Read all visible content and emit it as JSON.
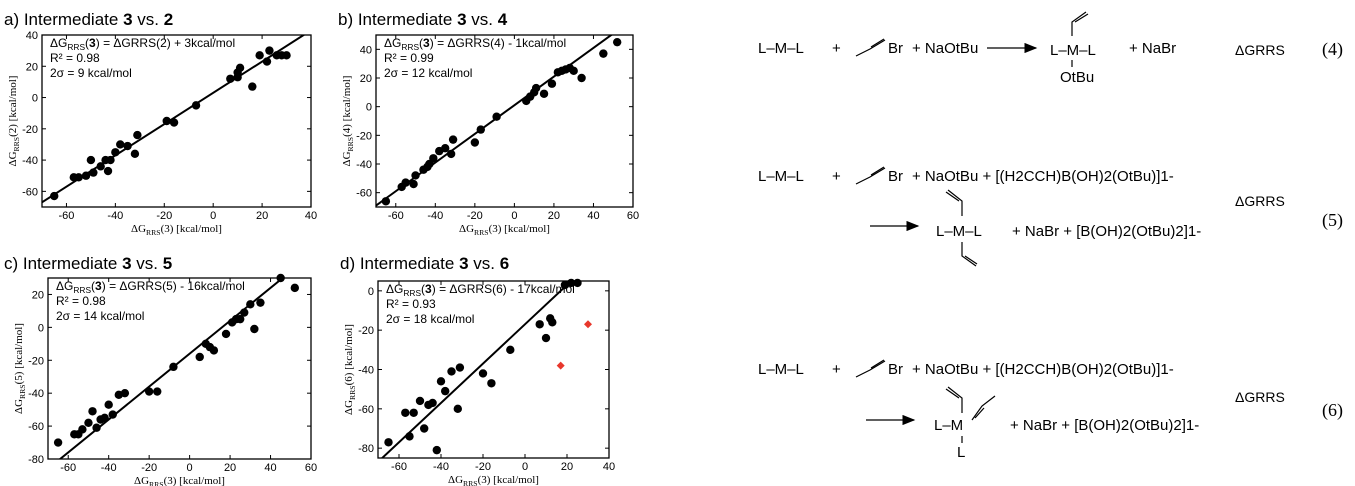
{
  "chart_data": [
    {
      "type": "scatter",
      "panel_label": "a)",
      "title_prefix": "Intermediate ",
      "title_a": "3",
      "title_vs": " vs. ",
      "title_b": "2",
      "xlabel": "ΔG_RRS(3) [kcal/mol]",
      "ylabel": "ΔG_RRS(2) [kcal/mol]",
      "xlim": [
        -70,
        40
      ],
      "ylim": [
        -70,
        40
      ],
      "xticks": [
        -60,
        -40,
        -20,
        0,
        20,
        40
      ],
      "yticks": [
        -60,
        -40,
        -20,
        0,
        20,
        40
      ],
      "annotations": [
        "ΔGRRS(3) = ΔGRRS(2) + 3kcal/mol",
        "R² = 0.98",
        "2σ = 9 kcal/mol"
      ],
      "fit": {
        "slope": 1,
        "intercept": 3
      },
      "points": [
        [
          -65,
          -63
        ],
        [
          -57,
          -51
        ],
        [
          -55,
          -51
        ],
        [
          -52,
          -50
        ],
        [
          -50,
          -40
        ],
        [
          -49,
          -48
        ],
        [
          -46,
          -44
        ],
        [
          -44,
          -40
        ],
        [
          -43,
          -47
        ],
        [
          -42,
          -40
        ],
        [
          -40,
          -35
        ],
        [
          -38,
          -30
        ],
        [
          -35,
          -31
        ],
        [
          -32,
          -36
        ],
        [
          -31,
          -24
        ],
        [
          -19,
          -15
        ],
        [
          -16,
          -16
        ],
        [
          -7,
          -5
        ],
        [
          7,
          12
        ],
        [
          10,
          13
        ],
        [
          10,
          16
        ],
        [
          11,
          19
        ],
        [
          16,
          7
        ],
        [
          19,
          27
        ],
        [
          22,
          23
        ],
        [
          23,
          30
        ],
        [
          26,
          27
        ],
        [
          28,
          27
        ],
        [
          30,
          27
        ]
      ],
      "outliers": []
    },
    {
      "type": "scatter",
      "panel_label": "b)",
      "title_prefix": "Intermediate ",
      "title_a": "3",
      "title_vs": " vs. ",
      "title_b": "4",
      "xlabel": "ΔG_RRS(3) [kcal/mol]",
      "ylabel": "ΔG_RRS(4) [kcal/mol]",
      "xlim": [
        -70,
        60
      ],
      "ylim": [
        -70,
        50
      ],
      "xticks": [
        -60,
        -40,
        -20,
        0,
        20,
        40,
        60
      ],
      "yticks": [
        -60,
        -40,
        -20,
        0,
        20,
        40
      ],
      "annotations": [
        "ΔGRRS(3) = ΔGRRS(4) - 1kcal/mol",
        "R² = 0.99",
        "2σ = 12 kcal/mol"
      ],
      "fit": {
        "slope": 1,
        "intercept": 1
      },
      "points": [
        [
          -65,
          -66
        ],
        [
          -57,
          -56
        ],
        [
          -55,
          -53
        ],
        [
          -51,
          -54
        ],
        [
          -50,
          -48
        ],
        [
          -46,
          -44
        ],
        [
          -44,
          -42
        ],
        [
          -43,
          -40
        ],
        [
          -41,
          -36
        ],
        [
          -38,
          -31
        ],
        [
          -35,
          -29
        ],
        [
          -32,
          -33
        ],
        [
          -31,
          -23
        ],
        [
          -20,
          -25
        ],
        [
          -17,
          -16
        ],
        [
          -9,
          -7
        ],
        [
          6,
          4
        ],
        [
          8,
          7
        ],
        [
          10,
          10
        ],
        [
          11,
          13
        ],
        [
          15,
          9
        ],
        [
          19,
          16
        ],
        [
          22,
          24
        ],
        [
          24,
          25
        ],
        [
          26,
          26
        ],
        [
          28,
          27
        ],
        [
          30,
          25
        ],
        [
          34,
          20
        ],
        [
          45,
          37
        ],
        [
          52,
          45
        ]
      ],
      "outliers": []
    },
    {
      "type": "scatter",
      "panel_label": "c)",
      "title_prefix": "Intermediate ",
      "title_a": "3",
      "title_vs": " vs. ",
      "title_b": "5",
      "xlabel": "ΔG_RRS(3) [kcal/mol]",
      "ylabel": "ΔG_RRS(5) [kcal/mol]",
      "xlim": [
        -70,
        60
      ],
      "ylim": [
        -80,
        30
      ],
      "xticks": [
        -60,
        -40,
        -20,
        0,
        20,
        40,
        60
      ],
      "yticks": [
        -80,
        -60,
        -40,
        -20,
        0,
        20
      ],
      "annotations": [
        "ΔGRRS(3) = ΔGRRS(5) - 16kcal/mol",
        "R² = 0.98",
        "2σ = 14 kcal/mol"
      ],
      "fit": {
        "slope": 1,
        "intercept": -16
      },
      "points": [
        [
          -65,
          -70
        ],
        [
          -57,
          -65
        ],
        [
          -55,
          -65
        ],
        [
          -53,
          -62
        ],
        [
          -50,
          -58
        ],
        [
          -48,
          -51
        ],
        [
          -46,
          -61
        ],
        [
          -44,
          -56
        ],
        [
          -42,
          -55
        ],
        [
          -40,
          -47
        ],
        [
          -38,
          -53
        ],
        [
          -35,
          -41
        ],
        [
          -32,
          -40
        ],
        [
          -20,
          -39
        ],
        [
          -16,
          -39
        ],
        [
          -8,
          -24
        ],
        [
          5,
          -18
        ],
        [
          8,
          -10
        ],
        [
          10,
          -12
        ],
        [
          12,
          -14
        ],
        [
          18,
          -4
        ],
        [
          21,
          3
        ],
        [
          23,
          5
        ],
        [
          25,
          5
        ],
        [
          27,
          9
        ],
        [
          30,
          14
        ],
        [
          32,
          -1
        ],
        [
          35,
          15
        ],
        [
          45,
          30
        ],
        [
          52,
          24
        ]
      ],
      "outliers": []
    },
    {
      "type": "scatter",
      "panel_label": "d)",
      "title_prefix": "Intermediate ",
      "title_a": "3",
      "title_vs": " vs. ",
      "title_b": "6",
      "xlabel": "ΔG_RRS(3) [kcal/mol]",
      "ylabel": "ΔG_RRS(6) [kcal/mol]",
      "xlim": [
        -70,
        40
      ],
      "ylim": [
        -85,
        5
      ],
      "xticks": [
        -60,
        -40,
        -20,
        0,
        20,
        40
      ],
      "yticks": [
        -80,
        -60,
        -40,
        -20,
        0
      ],
      "annotations": [
        "ΔGRRS(3) = ΔGRRS(6) - 17kcal/mol",
        "R² = 0.93",
        "2σ = 18 kcal/mol"
      ],
      "fit": {
        "slope": 1,
        "intercept": -17
      },
      "points": [
        [
          -65,
          -77
        ],
        [
          -57,
          -62
        ],
        [
          -55,
          -74
        ],
        [
          -53,
          -62
        ],
        [
          -50,
          -56
        ],
        [
          -48,
          -70
        ],
        [
          -46,
          -58
        ],
        [
          -44,
          -57
        ],
        [
          -42,
          -81
        ],
        [
          -40,
          -46
        ],
        [
          -38,
          -51
        ],
        [
          -35,
          -41
        ],
        [
          -32,
          -60
        ],
        [
          -31,
          -39
        ],
        [
          -20,
          -42
        ],
        [
          -16,
          -47
        ],
        [
          -7,
          -30
        ],
        [
          7,
          -17
        ],
        [
          10,
          -24
        ],
        [
          12,
          -14
        ],
        [
          13,
          -16
        ],
        [
          19,
          3
        ],
        [
          22,
          4
        ],
        [
          25,
          4
        ]
      ],
      "outliers": [
        [
          17,
          -38
        ],
        [
          30,
          -17
        ]
      ]
    }
  ],
  "equations": [
    {
      "number": "(4)",
      "dg": "ΔGRRS",
      "lml": "L–M–L",
      "plus": "+",
      "br": "Br",
      "reactants": "+ NaOtBu",
      "product_ml": "L–M–L",
      "product_o": "OtBu",
      "byproducts": "+ NaBr"
    },
    {
      "number": "(5)",
      "dg": "ΔGRRS",
      "lml": "L–M–L",
      "plus": "+",
      "br": "Br",
      "reactants": "+ NaOtBu + [(H2CCH)B(OH)2(OtBu)]1-",
      "product_ml": "L–M–L",
      "byproducts": "+ NaBr + [B(OH)2(OtBu)2]1-"
    },
    {
      "number": "(6)",
      "dg": "ΔGRRS",
      "lml": "L–M–L",
      "plus": "+",
      "br": "Br",
      "reactants": "+ NaOtBu + [(H2CCH)B(OH)2(OtBu)]1-",
      "product_lm": "L–M",
      "product_l": "L",
      "byproducts": "+ NaBr + [B(OH)2(OtBu)2]1-"
    }
  ]
}
